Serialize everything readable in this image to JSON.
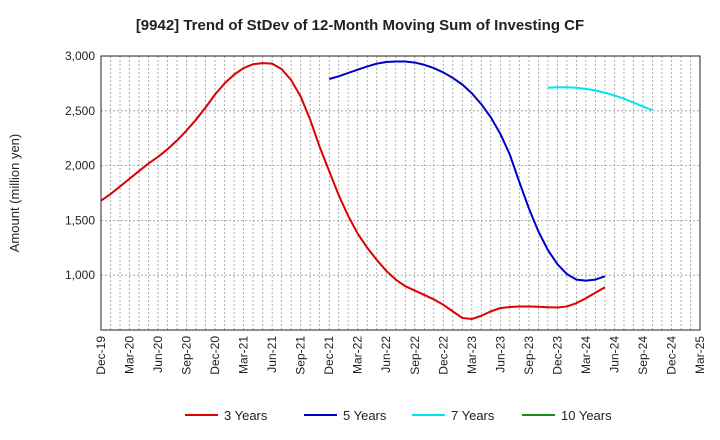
{
  "chart_data": {
    "type": "line",
    "title": "[9942]  Trend of StDev of 12-Month Moving Sum of Investing CF",
    "xlabel": "",
    "ylabel": "Amount (million yen)",
    "ylim": [
      500,
      3000
    ],
    "y_ticks": [
      1000,
      1500,
      2000,
      2500,
      3000
    ],
    "y_tick_labels": [
      "1,000",
      "1,500",
      "2,000",
      "2,500",
      "3,000"
    ],
    "x_tick_labels": [
      "Dec-19",
      "Mar-20",
      "Jun-20",
      "Sep-20",
      "Dec-20",
      "Mar-21",
      "Jun-21",
      "Sep-21",
      "Dec-21",
      "Mar-22",
      "Jun-22",
      "Sep-22",
      "Dec-22",
      "Mar-23",
      "Jun-23",
      "Sep-23",
      "Dec-23",
      "Mar-24",
      "Jun-24",
      "Sep-24",
      "Dec-24",
      "Mar-25"
    ],
    "grid": true,
    "legend_position": "bottom",
    "series": [
      {
        "name": "3 Years",
        "color": "#dd0000",
        "start_month": "Dec-19",
        "values": [
          1680,
          1740,
          1810,
          1880,
          1950,
          2020,
          2080,
          2150,
          2230,
          2320,
          2420,
          2530,
          2650,
          2750,
          2830,
          2890,
          2925,
          2935,
          2930,
          2880,
          2780,
          2630,
          2420,
          2170,
          1950,
          1730,
          1540,
          1380,
          1250,
          1140,
          1040,
          960,
          900,
          860,
          820,
          780,
          730,
          670,
          610,
          600,
          630,
          670,
          700,
          710,
          715,
          715,
          712,
          708,
          705,
          715,
          745,
          790,
          840,
          890
        ]
      },
      {
        "name": "5 Years",
        "color": "#0000cc",
        "start_month": "Dec-21",
        "values": [
          2790,
          2815,
          2845,
          2875,
          2905,
          2930,
          2945,
          2950,
          2950,
          2940,
          2920,
          2890,
          2850,
          2800,
          2740,
          2660,
          2560,
          2440,
          2290,
          2100,
          1850,
          1610,
          1400,
          1230,
          1100,
          1010,
          960,
          950,
          960,
          990
        ]
      },
      {
        "name": "7 Years",
        "color": "#00e5ee",
        "start_month": "Nov-23",
        "values": [
          2710,
          2715,
          2715,
          2710,
          2700,
          2685,
          2665,
          2640,
          2610,
          2575,
          2540,
          2505
        ]
      },
      {
        "name": "10 Years",
        "color": "#1a8a1a",
        "start_month": "",
        "values": []
      }
    ]
  }
}
